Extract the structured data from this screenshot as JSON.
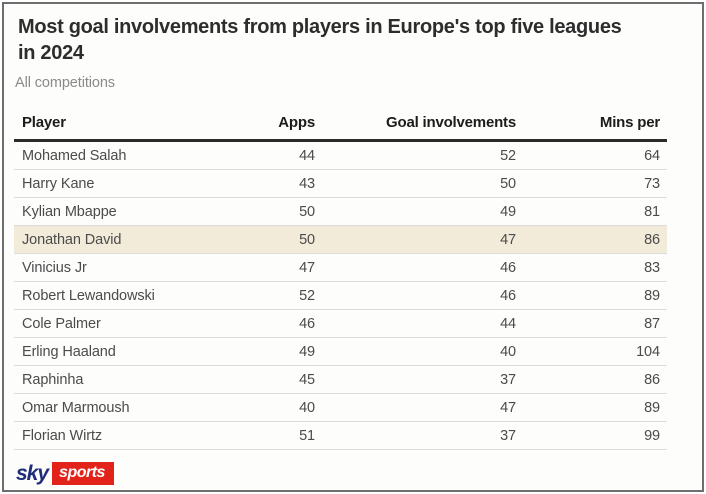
{
  "header": {
    "title_lines": [
      "Most goal involvements from players in Europe's top five leagues",
      "in 2024"
    ],
    "subtitle": "All competitions"
  },
  "chart_data": {
    "type": "table",
    "title": "Most goal involvements from players in Europe's top five leagues in 2024",
    "subtitle": "All competitions",
    "columns": [
      "Player",
      "Apps",
      "Goal involvements",
      "Mins per"
    ],
    "rows": [
      [
        "Mohamed Salah",
        44,
        52,
        64
      ],
      [
        "Harry Kane",
        43,
        50,
        73
      ],
      [
        "Kylian Mbappe",
        50,
        49,
        81
      ],
      [
        "Jonathan David",
        50,
        47,
        86
      ],
      [
        "Vinicius Jr",
        47,
        46,
        83
      ],
      [
        "Robert Lewandowski",
        52,
        46,
        89
      ],
      [
        "Cole Palmer",
        46,
        44,
        87
      ],
      [
        "Erling Haaland",
        49,
        40,
        104
      ],
      [
        "Raphinha",
        45,
        37,
        86
      ],
      [
        "Omar Marmoush",
        40,
        47,
        89
      ],
      [
        "Florian Wirtz",
        51,
        37,
        99
      ]
    ],
    "highlighted_row_index": 3,
    "layout": {
      "header_rule": true,
      "row_dividers": true,
      "numeric_align": "right"
    }
  },
  "branding": {
    "sky_label": "sky",
    "sports_label": "sports"
  },
  "colors": {
    "highlight_row": "#f2ebd9",
    "header_rule": "#2b2b2b",
    "row_divider": "#dcdcdc",
    "title_text": "#2d2d2d",
    "subtitle_text": "#8a8a8a",
    "body_text": "#4b4b4b",
    "sky_navy": "#1f2d7a",
    "sports_red": "#e2231a",
    "frame_border": "#6e6e6e"
  }
}
